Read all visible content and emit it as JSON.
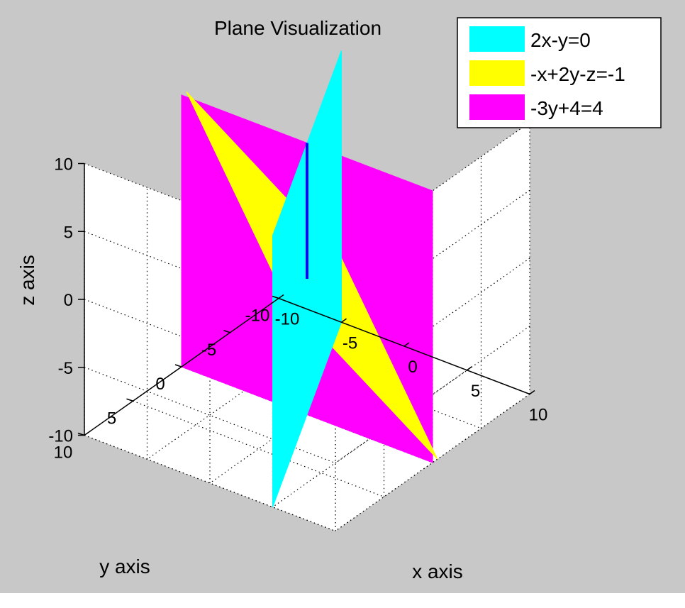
{
  "chart_data": {
    "type": "surface3d",
    "title": "Plane Visualization",
    "xlabel": "x axis",
    "ylabel": "y axis",
    "zlabel": "z axis",
    "xlim": [
      -10,
      10
    ],
    "ylim": [
      -10,
      10
    ],
    "zlim": [
      -10,
      10
    ],
    "xticks": [
      "-10",
      "-5",
      "0",
      "5",
      "10"
    ],
    "yticks": [
      "-10",
      "-5",
      "0",
      "5",
      "10"
    ],
    "zticks": [
      "-10",
      "-5",
      "0",
      "5",
      "10"
    ],
    "grid": true,
    "legend_position": "top-right",
    "series": [
      {
        "name": "2x-y=0",
        "color": "#00ffff",
        "equation": {
          "a": 2,
          "b": -1,
          "c": 0,
          "d": 0
        }
      },
      {
        "name": "-x+2y-z=-1",
        "color": "#ffff00",
        "equation": {
          "a": -1,
          "b": 2,
          "c": -1,
          "d": -1
        }
      },
      {
        "name": "-3y+4=4",
        "color": "#ff00ff",
        "equation": {
          "a": 0,
          "b": -3,
          "c": 0,
          "d": 0
        }
      }
    ],
    "axis_lines": [
      {
        "axis": "x",
        "color": "#ff0000",
        "from": [
          -10,
          0,
          0
        ],
        "to": [
          10,
          0,
          0
        ]
      },
      {
        "axis": "y",
        "color": "#00ff00",
        "from": [
          0,
          0,
          0
        ],
        "to": [
          0,
          -10,
          0
        ]
      },
      {
        "axis": "z",
        "color": "#0000ff",
        "from": [
          0,
          0,
          0
        ],
        "to": [
          0,
          0,
          10
        ]
      }
    ]
  },
  "colors": {
    "figure_background": "#c8c8c8",
    "axes_background": "#ffffff",
    "gridline": "#000000"
  }
}
